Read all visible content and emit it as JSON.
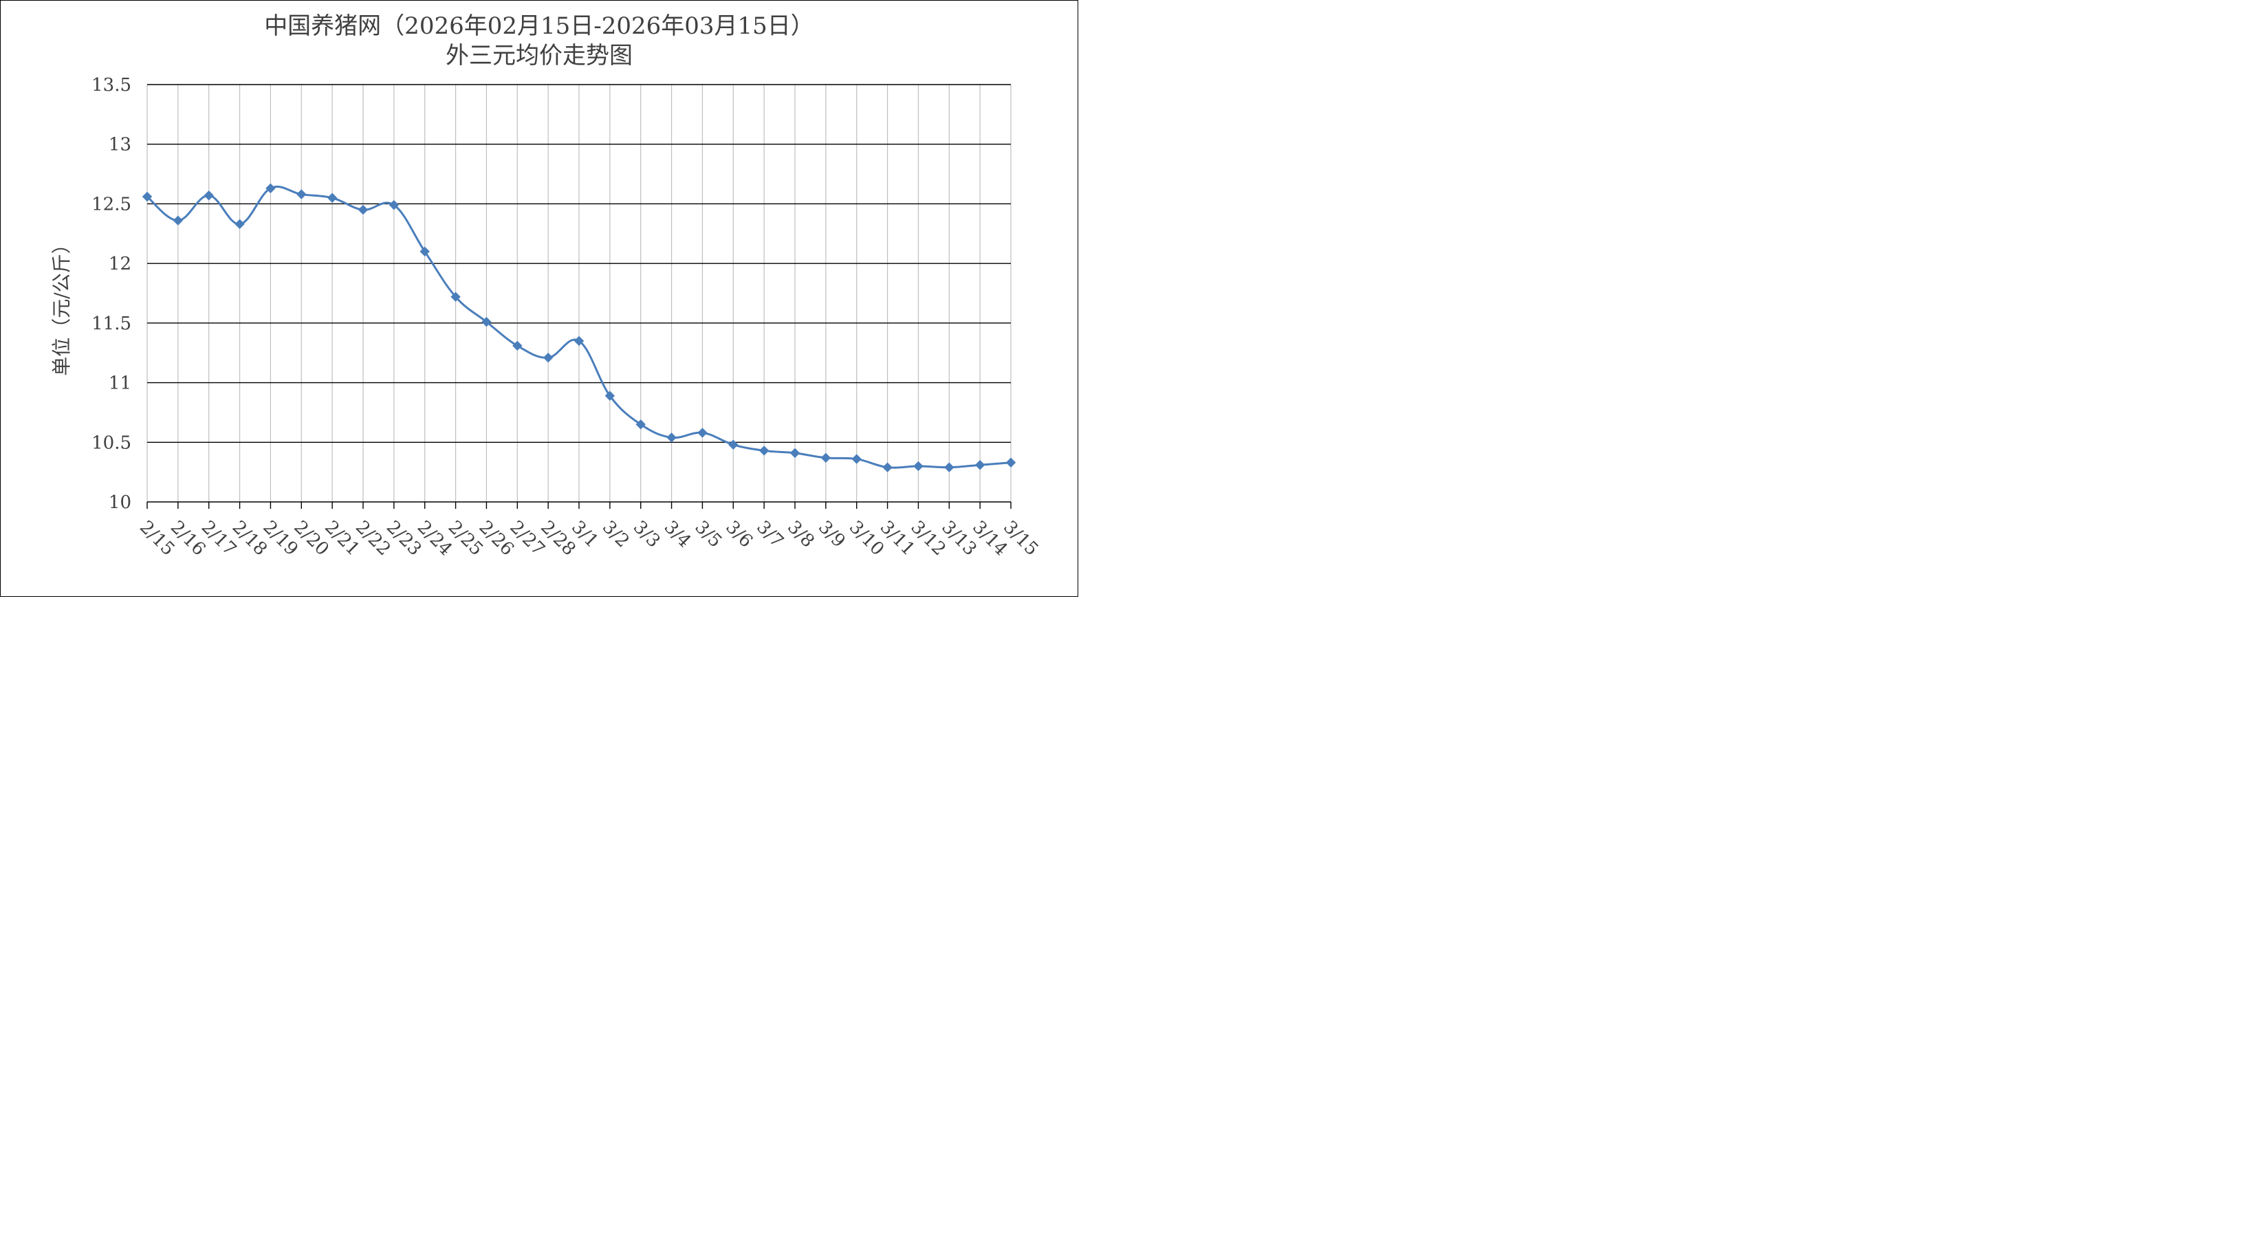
{
  "chart_data": {
    "type": "line",
    "title_line1": "中国养猪网（2026年02月15日-2026年03月15日）",
    "title_line2": "外三元均价走势图",
    "xlabel": "",
    "ylabel": "单位（元/公斤）",
    "ylim": [
      10,
      13.5
    ],
    "y_ticks": [
      "10",
      "10.5",
      "11",
      "11.5",
      "12",
      "12.5",
      "13",
      "13.5"
    ],
    "grid": true,
    "legend": "none",
    "categories": [
      "2/15",
      "2/16",
      "2/17",
      "2/18",
      "2/19",
      "2/20",
      "2/21",
      "2/22",
      "2/23",
      "2/24",
      "2/25",
      "2/26",
      "2/27",
      "2/28",
      "3/1",
      "3/2",
      "3/3",
      "3/4",
      "3/5",
      "3/6",
      "3/7",
      "3/8",
      "3/9",
      "3/10",
      "3/11",
      "3/12",
      "3/13",
      "3/14",
      "3/15"
    ],
    "series": [
      {
        "color": "#4a7ebb",
        "values": [
          12.56,
          12.36,
          12.57,
          12.33,
          12.63,
          12.58,
          12.55,
          12.45,
          12.49,
          12.1,
          11.72,
          11.51,
          11.31,
          11.21,
          11.35,
          10.89,
          10.65,
          10.54,
          10.58,
          10.48,
          10.43,
          10.41,
          10.37,
          10.36,
          10.29,
          10.3,
          10.29,
          10.31,
          10.33
        ]
      }
    ]
  }
}
